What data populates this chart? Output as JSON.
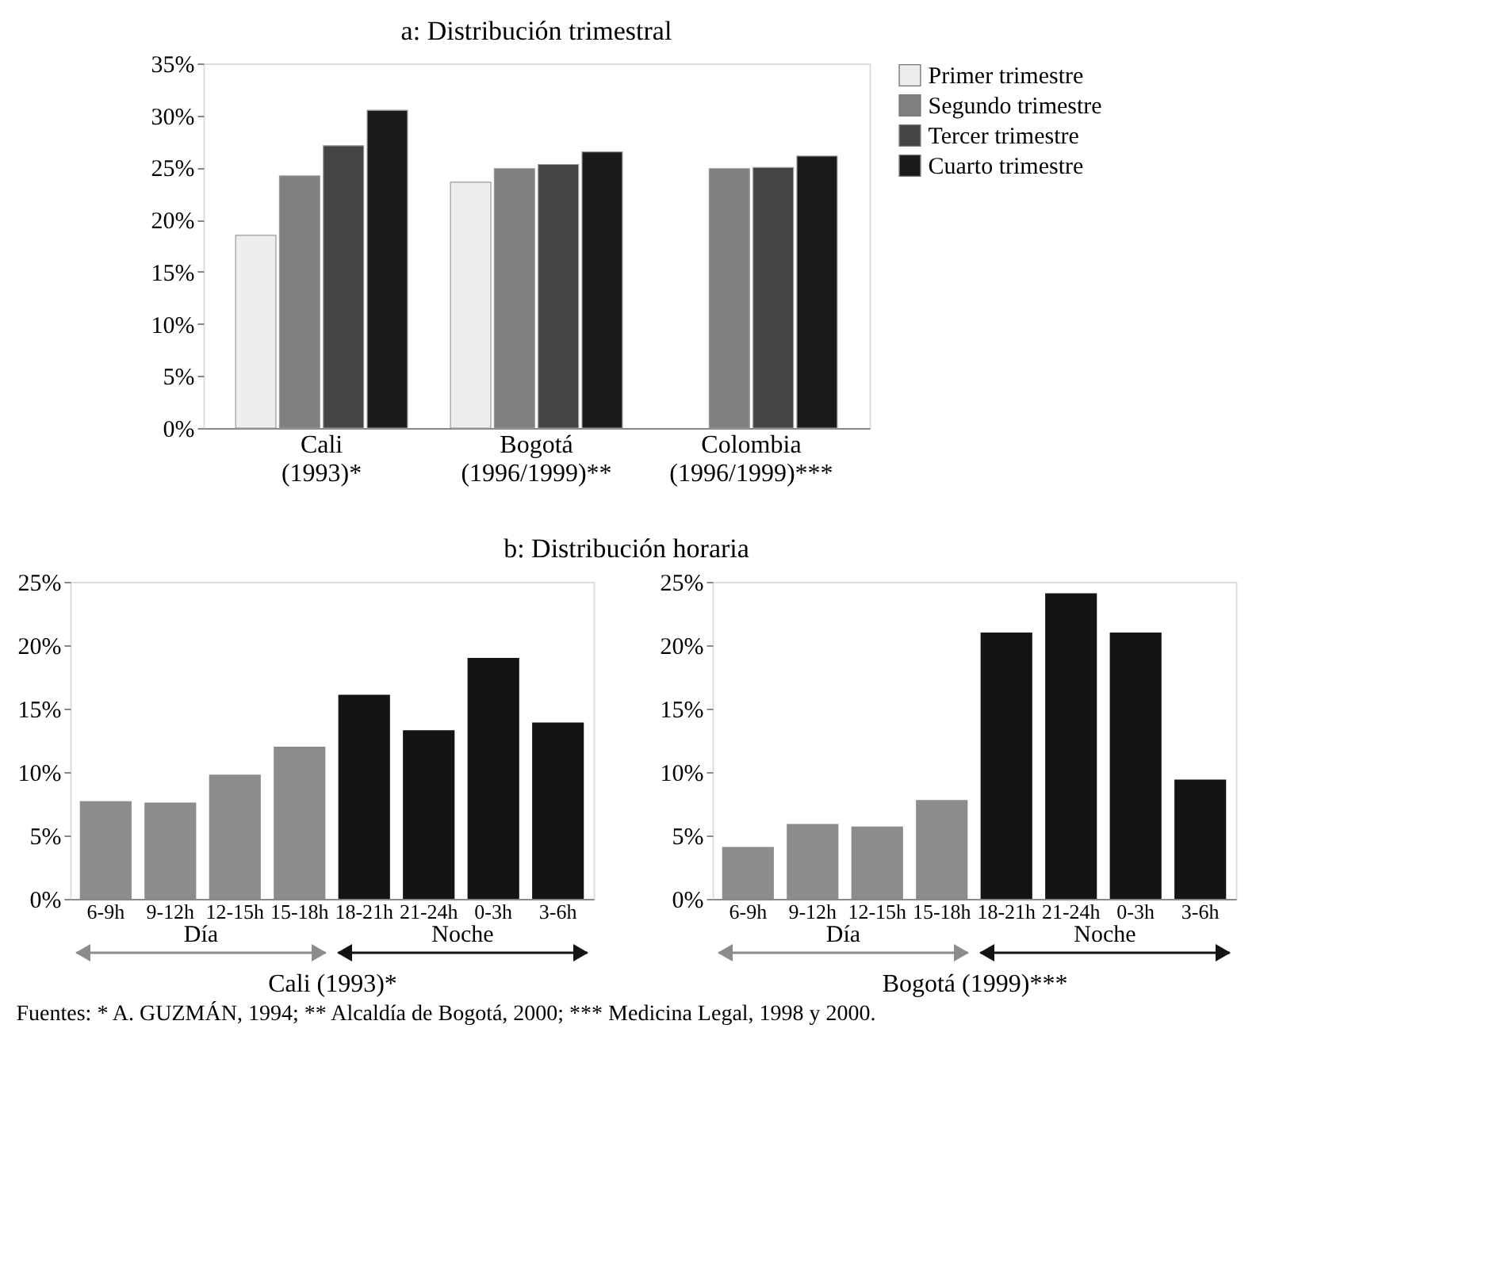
{
  "chart_data": [
    {
      "type": "bar",
      "title": "a: Distribución trimestral",
      "categories": [
        "Cali\n(1993)*",
        "Bogotá\n(1996/1999)**",
        "Colombia\n(1996/1999)***"
      ],
      "series": [
        {
          "name": "Primer trimestre",
          "color": "#eeeeee",
          "values": [
            18.5,
            23.6,
            null
          ]
        },
        {
          "name": "Segundo trimestre",
          "color": "#808080",
          "values": [
            24.2,
            24.9,
            24.9
          ]
        },
        {
          "name": "Tercer trimestre",
          "color": "#444444",
          "values": [
            27.1,
            25.3,
            25.0
          ]
        },
        {
          "name": "Cuarto trimestre",
          "color": "#1a1a1a",
          "values": [
            30.5,
            26.5,
            26.1
          ]
        }
      ],
      "ylim": [
        0,
        35
      ],
      "yticks": [
        {
          "value": 0,
          "label": "0%"
        },
        {
          "value": 5,
          "label": "5%"
        },
        {
          "value": 10,
          "label": "10%"
        },
        {
          "value": 15,
          "label": "15%"
        },
        {
          "value": 20,
          "label": "20%"
        },
        {
          "value": 25,
          "label": "25%"
        },
        {
          "value": 30,
          "label": "30%"
        },
        {
          "value": 35,
          "label": "35%"
        }
      ],
      "legend": "right",
      "grid": false
    },
    {
      "type": "bar",
      "title": "b: Distribución horaria",
      "xlabel": "Cali (1993)*",
      "categories": [
        "6-9h",
        "9-12h",
        "12-15h",
        "15-18h",
        "18-21h",
        "21-24h",
        "0-3h",
        "3-6h"
      ],
      "values": [
        7.7,
        7.6,
        9.8,
        12.0,
        16.1,
        13.3,
        19.0,
        13.9
      ],
      "colors": [
        "#8c8c8c",
        "#8c8c8c",
        "#8c8c8c",
        "#8c8c8c",
        "#141414",
        "#141414",
        "#141414",
        "#141414"
      ],
      "ylim": [
        0,
        25
      ],
      "yticks": [
        {
          "value": 0,
          "label": "0%"
        },
        {
          "value": 5,
          "label": "5%"
        },
        {
          "value": 10,
          "label": "10%"
        },
        {
          "value": 15,
          "label": "15%"
        },
        {
          "value": 20,
          "label": "20%"
        },
        {
          "value": 25,
          "label": "25%"
        }
      ],
      "annotations": [
        "Día",
        "Noche"
      ],
      "grid": false
    },
    {
      "type": "bar",
      "xlabel": "Bogotá (1999)***",
      "categories": [
        "6-9h",
        "9-12h",
        "12-15h",
        "15-18h",
        "18-21h",
        "21-24h",
        "0-3h",
        "3-6h"
      ],
      "values": [
        4.1,
        5.9,
        5.7,
        7.8,
        21.0,
        24.1,
        21.0,
        9.4
      ],
      "colors": [
        "#8c8c8c",
        "#8c8c8c",
        "#8c8c8c",
        "#8c8c8c",
        "#141414",
        "#141414",
        "#141414",
        "#141414"
      ],
      "ylim": [
        0,
        25
      ],
      "yticks": [
        {
          "value": 0,
          "label": "0%"
        },
        {
          "value": 5,
          "label": "5%"
        },
        {
          "value": 10,
          "label": "10%"
        },
        {
          "value": 15,
          "label": "15%"
        },
        {
          "value": 20,
          "label": "20%"
        },
        {
          "value": 25,
          "label": "25%"
        }
      ],
      "annotations": [
        "Día",
        "Noche",
        "Fuentes: * A. GUZMÁN, 1994; ** Alcaldía de Bogotá, 2000; *** Medicina Legal, 1998 y 2000."
      ],
      "grid": false
    }
  ]
}
